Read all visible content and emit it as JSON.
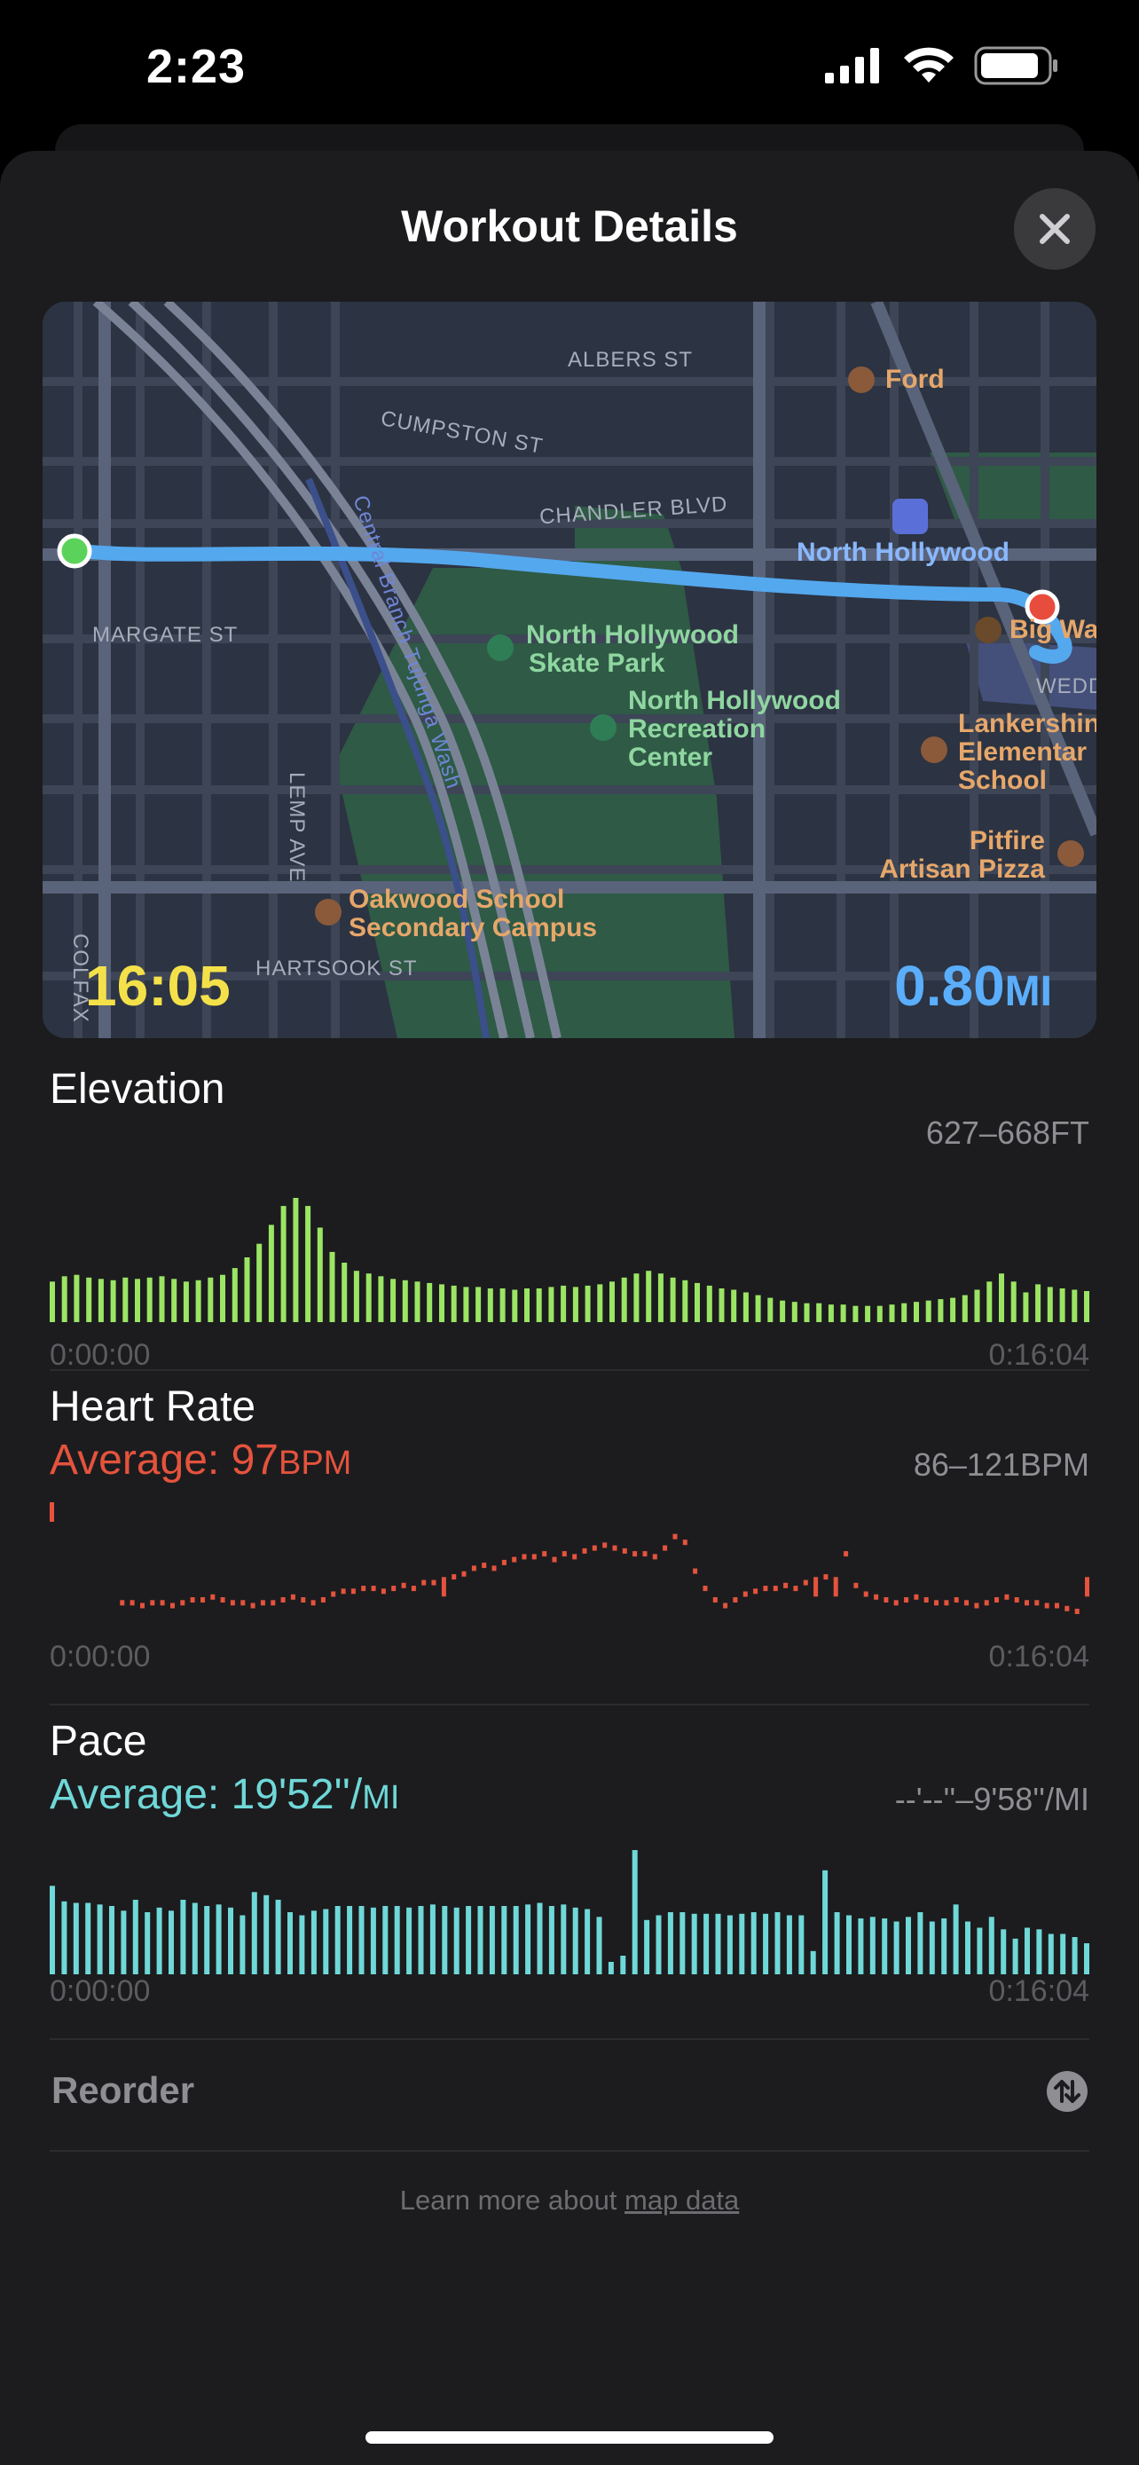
{
  "status": {
    "time": "2:23"
  },
  "header": {
    "title": "Workout Details"
  },
  "map": {
    "duration": "16:05",
    "distance_value": "0.80",
    "distance_unit": "MI",
    "labels": {
      "albers": "ALBERS ST",
      "cumpston": "CUMPSTON ST",
      "chandler": "CHANDLER BLVD",
      "margate": "MARGATE ST",
      "lemp": "LEMP AVE",
      "hartsook": "HARTSOOK ST",
      "colfax": "COLFAX",
      "wash": "Central Branch Tujunga Wash",
      "ford": "Ford",
      "north_hollywood": "North Hollywood",
      "big_wa": "Big Wa",
      "wedd": "WEDD",
      "skate_1": "North Hollywood",
      "skate_2": "Skate Park",
      "rec_1": "North Hollywood",
      "rec_2": "Recreation",
      "rec_3": "Center",
      "lank_1": "Lankershin",
      "lank_2": "Elementar",
      "lank_3": "School",
      "pit_1": "Pitfire",
      "pit_2": "Artisan Pizza",
      "oak_1": "Oakwood School",
      "oak_2": "Secondary Campus"
    }
  },
  "elevation": {
    "title": "Elevation",
    "range": "627–668FT",
    "start": "0:00:00",
    "end": "0:16:04",
    "color": "#9be564",
    "values": [
      30,
      34,
      35,
      33,
      32,
      31,
      33,
      32,
      33,
      34,
      32,
      30,
      31,
      33,
      35,
      40,
      48,
      58,
      72,
      86,
      92,
      86,
      70,
      52,
      44,
      38,
      36,
      34,
      32,
      31,
      30,
      29,
      28,
      27,
      26,
      26,
      25,
      25,
      24,
      25,
      25,
      26,
      27,
      26,
      27,
      28,
      30,
      33,
      36,
      38,
      36,
      33,
      31,
      29,
      27,
      25,
      24,
      22,
      20,
      18,
      16,
      15,
      14,
      14,
      13,
      13,
      12,
      12,
      12,
      13,
      14,
      15,
      16,
      17,
      18,
      20,
      24,
      30,
      36,
      30,
      22,
      28,
      26,
      25,
      24,
      23
    ]
  },
  "heart": {
    "title": "Heart Rate",
    "avg_label": "Average: 97",
    "avg_unit": "BPM",
    "range": "86–121BPM",
    "start": "0:00:00",
    "end": "0:16:04",
    "color": "#e5533d",
    "values": [
      121,
      null,
      null,
      null,
      null,
      null,
      null,
      87,
      87,
      86,
      87,
      87,
      86,
      87,
      88,
      88,
      89,
      88,
      87,
      87,
      86,
      87,
      87,
      88,
      89,
      88,
      87,
      88,
      90,
      91,
      91,
      92,
      92,
      91,
      92,
      93,
      92,
      94,
      94,
      95,
      96,
      97,
      99,
      100,
      99,
      101,
      102,
      103,
      103,
      104,
      102,
      104,
      103,
      105,
      106,
      107,
      106,
      105,
      104,
      104,
      103,
      106,
      110,
      108,
      98,
      92,
      88,
      86,
      88,
      90,
      91,
      92,
      92,
      93,
      92,
      94,
      95,
      96,
      95,
      104,
      93,
      90,
      89,
      88,
      87,
      88,
      89,
      88,
      87,
      87,
      88,
      87,
      86,
      87,
      88,
      89,
      88,
      87,
      87,
      86,
      86,
      85,
      84,
      95
    ]
  },
  "pace": {
    "title": "Pace",
    "avg_label": "Average: 19'52''/",
    "avg_unit": "MI",
    "range": "--'--''–9'58''/MI",
    "start": "0:00:00",
    "end": "0:16:04",
    "color": "#6fd8d8",
    "values": [
      57,
      47,
      46,
      46,
      45,
      44,
      41,
      48,
      40,
      43,
      41,
      48,
      46,
      44,
      45,
      43,
      38,
      53,
      51,
      48,
      40,
      38,
      41,
      42,
      44,
      44,
      44,
      43,
      44,
      44,
      43,
      44,
      45,
      44,
      43,
      44,
      44,
      44,
      44,
      44,
      45,
      46,
      44,
      45,
      43,
      42,
      37,
      8,
      12,
      80,
      35,
      38,
      40,
      40,
      39,
      39,
      39,
      38,
      39,
      40,
      39,
      40,
      38,
      38,
      15,
      67,
      40,
      38,
      36,
      37,
      36,
      34,
      37,
      40,
      34,
      36,
      45,
      34,
      30,
      37,
      29,
      23,
      30,
      29,
      26,
      26,
      24,
      20
    ]
  },
  "reorder": {
    "label": "Reorder"
  },
  "footer": {
    "prefix": "Learn more about ",
    "link": "map data"
  }
}
